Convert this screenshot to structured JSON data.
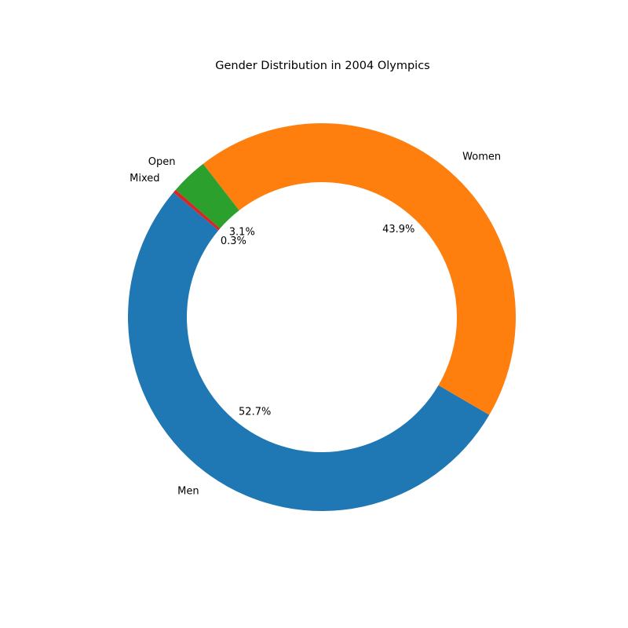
{
  "chart_data": {
    "type": "pie",
    "style": "donut",
    "title": "Gender Distribution in 2004 Olympics",
    "slices": [
      {
        "label": "Men",
        "value": 52.7,
        "pct_label": "52.7%",
        "color": "#1f77b4"
      },
      {
        "label": "Women",
        "value": 43.9,
        "pct_label": "43.9%",
        "color": "#ff7f0e"
      },
      {
        "label": "Open",
        "value": 3.1,
        "pct_label": "3.1%",
        "color": "#2ca02c"
      },
      {
        "label": "Mixed",
        "value": 0.3,
        "pct_label": "0.3%",
        "color": "#d62728"
      }
    ],
    "start_angle_deg": 140,
    "direction": "counterclockwise",
    "legend": "none"
  }
}
